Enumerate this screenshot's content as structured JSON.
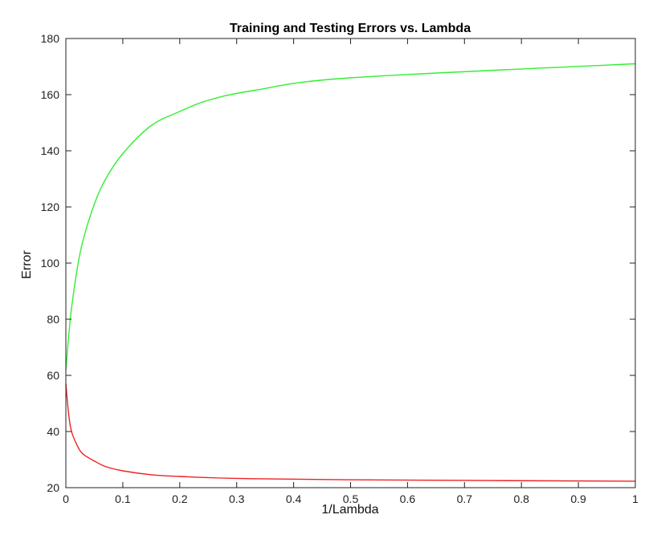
{
  "chart_data": {
    "type": "line",
    "title": "Training and Testing Errors vs. Lambda",
    "xlabel": "1/Lambda",
    "ylabel": "Error",
    "xlim": [
      0,
      1
    ],
    "ylim": [
      20,
      180
    ],
    "xticks": [
      0,
      0.1,
      0.2,
      0.3,
      0.4,
      0.5,
      0.6,
      0.7,
      0.8,
      0.9,
      1
    ],
    "xtick_labels": [
      "0",
      "0.1",
      "0.2",
      "0.3",
      "0.4",
      "0.5",
      "0.6",
      "0.7",
      "0.8",
      "0.9",
      "1"
    ],
    "yticks": [
      20,
      40,
      60,
      80,
      100,
      120,
      140,
      160,
      180
    ],
    "ytick_labels": [
      "20",
      "40",
      "60",
      "80",
      "100",
      "120",
      "140",
      "160",
      "180"
    ],
    "grid": false,
    "series": [
      {
        "color": "#33ee33",
        "x": [
          0,
          0.005,
          0.01,
          0.02,
          0.03,
          0.05,
          0.07,
          0.1,
          0.15,
          0.2,
          0.25,
          0.33,
          0.5,
          1.0
        ],
        "y": [
          62,
          74,
          84,
          98,
          108,
          121,
          130,
          139,
          149,
          154,
          158,
          161.5,
          166,
          171
        ]
      },
      {
        "color": "#ee2222",
        "x": [
          0,
          0.005,
          0.01,
          0.02,
          0.03,
          0.05,
          0.07,
          0.1,
          0.15,
          0.2,
          0.3,
          0.5,
          1.0
        ],
        "y": [
          57,
          46,
          40,
          35,
          32,
          29.5,
          27.5,
          26,
          24.6,
          24,
          23.3,
          22.8,
          22.3
        ]
      }
    ]
  }
}
